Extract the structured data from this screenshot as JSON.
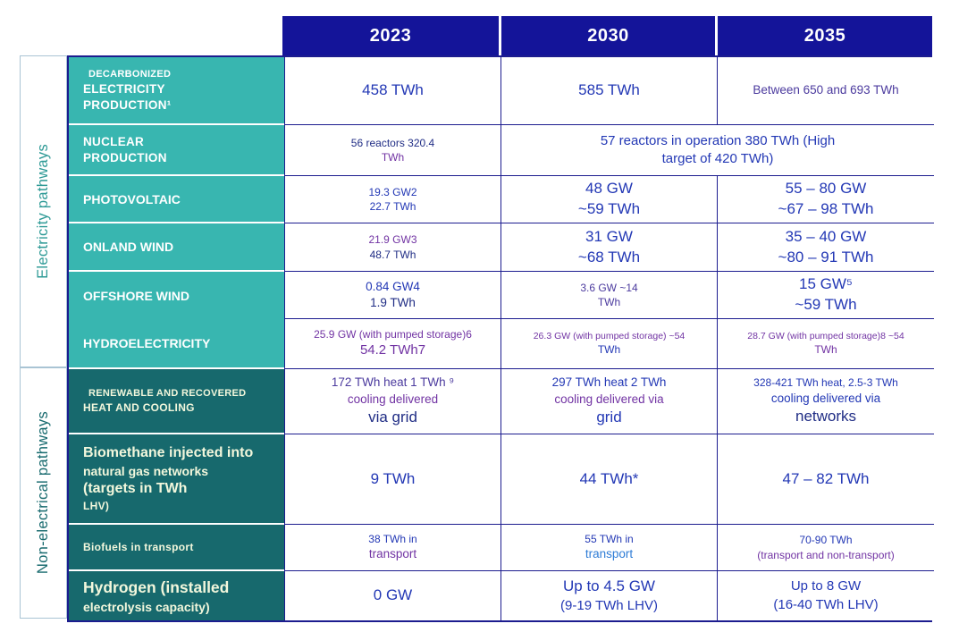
{
  "palette": {
    "header_bg": "#141499",
    "teal": "#38b6b0",
    "dark_teal": "#17696d",
    "border_navy": "#1c1c8f",
    "text_blue": "#2338b5",
    "text_navy": "#202d85",
    "text_indigo": "#4b3a9e",
    "text_purple": "#7133a3",
    "text_light_blue": "#2e7cd6"
  },
  "header": {
    "columns": [
      "2023",
      "2030",
      "2035"
    ]
  },
  "sidebar": {
    "electricity": "Electricity pathways",
    "non_electrical": "Non-electrical pathways"
  },
  "rows": [
    {
      "id": "decarbonized-electricity-production",
      "label": [
        {
          "t": "DECARBONIZED",
          "c": "lab-xs"
        },
        {
          "t": "ELECTRICITY",
          "c": "lab-md"
        },
        {
          "t": "PRODUCTION¹",
          "c": "lab-md"
        }
      ],
      "y2023": [
        {
          "t": "458 TWh",
          "c": "blue lg"
        }
      ],
      "y2030": [
        {
          "t": "585 TWh",
          "c": "blue lg"
        }
      ],
      "y2035": [
        {
          "t": "Between 650 and 693 TWh",
          "c": "indigo md"
        }
      ]
    },
    {
      "id": "nuclear-production",
      "label": [
        {
          "t": "NUCLEAR",
          "c": "lab-md"
        },
        {
          "t": "PRODUCTION",
          "c": "lab-md"
        }
      ],
      "y2023": [
        {
          "t": "56 reactors 320.4",
          "c": "navy sm"
        },
        {
          "t": "TWh",
          "c": "purple sm"
        }
      ],
      "y2030_2035": [
        {
          "t": "57 reactors in operation 380 TWh (High",
          "c": "blue md2"
        },
        {
          "t": "target of 420 TWh)",
          "c": "blue md2"
        }
      ]
    },
    {
      "id": "photovoltaic",
      "label": [
        {
          "t": "PHOTOVOLTAIC",
          "c": "lab-ml"
        }
      ],
      "y2023": [
        {
          "t": "19.3 GW2",
          "c": "blue sm"
        },
        {
          "t": "22.7 TWh",
          "c": "blue sm"
        }
      ],
      "y2030": [
        {
          "t": "48 GW",
          "c": "blue lg"
        },
        {
          "t": "~59 TWh",
          "c": "blue lg"
        }
      ],
      "y2035": [
        {
          "t": "55 – 80 GW",
          "c": "blue lg"
        },
        {
          "t": "~67 – 98 TWh",
          "c": "blue lg"
        }
      ]
    },
    {
      "id": "onland-wind",
      "label": [
        {
          "t": "ONLAND WIND",
          "c": "lab-ml"
        }
      ],
      "y2023": [
        {
          "t": "21.9 GW3",
          "c": "purple sm"
        },
        {
          "t": "48.7 TWh",
          "c": "navy sm"
        }
      ],
      "y2030": [
        {
          "t": "31 GW",
          "c": "blue lg"
        },
        {
          "t": "~68 TWh",
          "c": "blue lg"
        }
      ],
      "y2035": [
        {
          "t": "35 – 40 GW",
          "c": "blue lg"
        },
        {
          "t": "~80 – 91 TWh",
          "c": "blue lg"
        }
      ]
    },
    {
      "id": "offshore-wind",
      "label": [
        {
          "t": "OFFSHORE WIND",
          "c": "lab-ml"
        }
      ],
      "y2023": [
        {
          "t": "0.84 GW4",
          "c": "blue md"
        },
        {
          "t": "1.9 TWh",
          "c": "navy md"
        }
      ],
      "y2030": [
        {
          "t": "3.6 GW ~14",
          "c": "indigo sm"
        },
        {
          "t": "TWh",
          "c": "indigo sm"
        }
      ],
      "y2035": [
        {
          "t": "15 GW⁵",
          "c": "blue lg"
        },
        {
          "t": "~59 TWh",
          "c": "blue lg"
        }
      ]
    },
    {
      "id": "hydroelectricity",
      "label": [
        {
          "t": "HYDROELECTRICITY",
          "c": "lab-ml"
        }
      ],
      "y2023": [
        {
          "t": "25.9 GW (with pumped storage)6",
          "c": "purple sm"
        },
        {
          "t": "54.2 TWh7",
          "c": "purple md2"
        }
      ],
      "y2030": [
        {
          "t": "26.3 GW (with pumped storage) ~54",
          "c": "purple xs"
        },
        {
          "t": "TWh",
          "c": "blue sm"
        }
      ],
      "y2035": [
        {
          "t": "28.7 GW (with pumped storage)8 ~54",
          "c": "purple xs"
        },
        {
          "t": "TWh",
          "c": "purple sm"
        }
      ]
    },
    {
      "id": "renewable-recovered-heat-cooling",
      "label": [
        {
          "t": "RENEWABLE AND RECOVERED",
          "c": "lab-xs"
        },
        {
          "t": "HEAT AND COOLING",
          "c": "lab-sm"
        }
      ],
      "y2023": [
        {
          "t": "172 TWh heat 1 TWh ⁹",
          "c": "indigo md"
        },
        {
          "t": "cooling delivered",
          "c": "purple md"
        },
        {
          "t": "via grid",
          "c": "navy lg"
        }
      ],
      "y2030": [
        {
          "t": "297 TWh heat 2 TWh",
          "c": "blue md"
        },
        {
          "t": "cooling delivered via",
          "c": "purple md"
        },
        {
          "t": "grid",
          "c": "blue lg"
        }
      ],
      "y2035": [
        {
          "t": "328-421 TWh heat, 2.5-3 TWh",
          "c": "blue sm"
        },
        {
          "t": "cooling delivered via",
          "c": "blue md"
        },
        {
          "t": "networks",
          "c": "navy lg"
        }
      ]
    },
    {
      "id": "biomethane-injected",
      "label": [
        {
          "t": "Biomethane injected into",
          "c": "lab-lg"
        },
        {
          "t": "natural gas networks",
          "c": "lab-ml"
        },
        {
          "t": "(targets in TWh",
          "c": "lab-lg"
        },
        {
          "t": "LHV)",
          "c": "lab-sm"
        }
      ],
      "y2023": [
        {
          "t": "9 TWh",
          "c": "blue lg"
        }
      ],
      "y2030": [
        {
          "t": "44 TWh*",
          "c": "blue lg"
        }
      ],
      "y2035": [
        {
          "t": "47 – 82 TWh",
          "c": "blue lg"
        }
      ]
    },
    {
      "id": "biofuels-in-transport",
      "label": [
        {
          "t": "Biofuels in transport",
          "c": "lab-sm"
        }
      ],
      "y2023": [
        {
          "t": "38 TWh in",
          "c": "blue sm"
        },
        {
          "t": "transport",
          "c": "purple md"
        }
      ],
      "y2030": [
        {
          "t": "55 TWh in",
          "c": "blue sm"
        },
        {
          "t": "transport",
          "c": "lblue md"
        }
      ],
      "y2035": [
        {
          "t": "70-90 TWh",
          "c": "blue sm"
        },
        {
          "t": "(transport and non-transport)",
          "c": "purple sm"
        }
      ]
    },
    {
      "id": "hydrogen-electrolysis",
      "label": [
        {
          "t": "Hydrogen (installed",
          "c": "lab-xl"
        },
        {
          "t": "electrolysis capacity)",
          "c": "lab-ml"
        }
      ],
      "y2023": [
        {
          "t": "0 GW",
          "c": "blue lg"
        }
      ],
      "y2030": [
        {
          "t": "Up to 4.5 GW",
          "c": "blue lg"
        },
        {
          "t": "(9-19 TWh LHV)",
          "c": "blue md2"
        }
      ],
      "y2035": [
        {
          "t": "Up to 8 GW",
          "c": "blue md2"
        },
        {
          "t": "(16-40 TWh LHV)",
          "c": "blue md2"
        }
      ]
    }
  ]
}
